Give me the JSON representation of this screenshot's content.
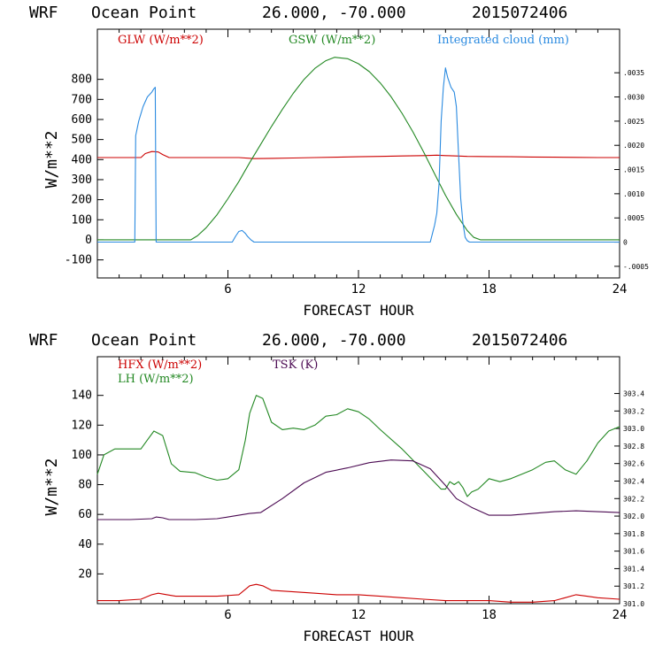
{
  "colors": {
    "red": "#cc0000",
    "green": "#228822",
    "blue": "#2a8ae0",
    "purple": "#4b0a52",
    "axis": "#000000"
  },
  "chart_data": [
    {
      "type": "line",
      "header": {
        "model": "WRF",
        "location": "Ocean Point",
        "coords": "26.000, -70.000",
        "init": "2015072406"
      },
      "xlabel": "FORECAST HOUR",
      "ylabel": "W/m**2",
      "xlim": [
        0,
        24
      ],
      "ylim": [
        -190,
        1050
      ],
      "x_ticks": [
        "6",
        "12",
        "18",
        "24"
      ],
      "y_ticks": [
        "-100",
        "0",
        "100",
        "200",
        "300",
        "400",
        "500",
        "600",
        "700",
        "800"
      ],
      "y2lim": [
        -0.00074,
        0.0044
      ],
      "y2_ticks": [
        "-.0005",
        "0",
        ".0005",
        ".0010",
        ".0015",
        ".0020",
        ".0025",
        ".0030",
        ".0035"
      ],
      "legend": [
        "GLW (W/m**2)",
        "GSW (W/m**2)",
        "Integrated cloud (mm)"
      ],
      "series": [
        {
          "name": "GLW (W/m**2)",
          "color": "red",
          "axis": "left",
          "x": [
            0,
            0.5,
            1.0,
            1.5,
            2.0,
            2.2,
            2.5,
            2.8,
            3.0,
            3.3,
            3.6,
            4.5,
            5.5,
            6.5,
            7.2,
            8.0,
            9.0,
            10.0,
            11.0,
            12.0,
            13.0,
            14.0,
            15.0,
            15.6,
            16.0,
            16.5,
            17.0,
            18.0,
            19.0,
            20.0,
            21.0,
            22.0,
            23.0,
            24.0
          ],
          "y": [
            410,
            410,
            410,
            410,
            410,
            430,
            440,
            438,
            425,
            410,
            410,
            410,
            410,
            410,
            405,
            406,
            408,
            410,
            412,
            414,
            416,
            418,
            420,
            422,
            420,
            418,
            416,
            415,
            414,
            413,
            412,
            411,
            410,
            410
          ]
        },
        {
          "name": "GSW (W/m**2)",
          "color": "green",
          "axis": "left",
          "x": [
            0,
            4.0,
            4.3,
            4.6,
            5.0,
            5.5,
            6.0,
            6.5,
            7.0,
            7.5,
            8.0,
            8.5,
            9.0,
            9.5,
            10.0,
            10.5,
            10.9,
            11.5,
            12.0,
            12.5,
            13.0,
            13.5,
            14.0,
            14.5,
            15.0,
            15.5,
            16.0,
            16.5,
            17.0,
            17.3,
            17.6,
            18.0,
            24.0
          ],
          "y": [
            0,
            0,
            0,
            20,
            60,
            125,
            205,
            290,
            385,
            475,
            565,
            650,
            730,
            800,
            855,
            893,
            910,
            903,
            878,
            838,
            782,
            713,
            631,
            538,
            436,
            329,
            222,
            127,
            46,
            12,
            0,
            0,
            0
          ]
        },
        {
          "name": "Integrated cloud (mm)",
          "color": "blue",
          "axis": "right",
          "x": [
            0,
            1.72,
            1.76,
            1.9,
            2.1,
            2.3,
            2.5,
            2.6,
            2.66,
            2.7,
            2.8,
            6.2,
            6.35,
            6.5,
            6.65,
            6.8,
            6.9,
            7.05,
            7.2,
            15.3,
            15.5,
            15.6,
            15.7,
            15.8,
            15.9,
            16.0,
            16.1,
            16.25,
            16.4,
            16.5,
            16.6,
            16.7,
            16.8,
            16.9,
            17.0,
            17.1,
            24.0
          ],
          "y": [
            0,
            0,
            0.0022,
            0.0025,
            0.0028,
            0.003,
            0.0031,
            0.00317,
            0.0032,
            0,
            0,
            0,
            0.00012,
            0.00022,
            0.00024,
            0.00018,
            0.00012,
            5e-05,
            0,
            0,
            0.00035,
            0.0006,
            0.0012,
            0.0025,
            0.0032,
            0.0036,
            0.0034,
            0.0032,
            0.0031,
            0.0028,
            0.0018,
            0.0009,
            0.0004,
            0.0001,
            3e-05,
            0,
            0
          ]
        }
      ]
    },
    {
      "type": "line",
      "header": {
        "model": "WRF",
        "location": "Ocean Point",
        "coords": "26.000, -70.000",
        "init": "2015072406"
      },
      "xlabel": "FORECAST HOUR",
      "ylabel": "W/m**2",
      "xlim": [
        0,
        24
      ],
      "ylim": [
        0,
        166
      ],
      "x_ticks": [
        "6",
        "12",
        "18",
        "24"
      ],
      "y_ticks": [
        "20",
        "40",
        "60",
        "80",
        "100",
        "120",
        "140"
      ],
      "y2lim": [
        301.0,
        303.82
      ],
      "y2_ticks": [
        "301.0",
        "301.2",
        "301.4",
        "301.6",
        "301.8",
        "302.0",
        "302.2",
        "302.4",
        "302.6",
        "302.8",
        "303.0",
        "303.2",
        "303.4"
      ],
      "legend": [
        "HFX (W/m**2)",
        "LH (W/m**2)",
        "TSK (K)"
      ],
      "series": [
        {
          "name": "HFX (W/m**2)",
          "color": "red",
          "axis": "left",
          "x": [
            0,
            1.0,
            2.0,
            2.5,
            2.8,
            3.2,
            3.6,
            4.5,
            5.5,
            6.5,
            7.0,
            7.3,
            7.6,
            8.0,
            9.0,
            10.0,
            11.0,
            12.0,
            13.0,
            14.0,
            15.0,
            16.0,
            17.0,
            18.0,
            19.0,
            20.0,
            21.0,
            21.5,
            22.0,
            22.5,
            23.0,
            24.0
          ],
          "y": [
            2,
            2,
            3,
            6,
            7,
            6,
            5,
            5,
            5,
            6,
            12,
            13,
            12,
            9,
            8,
            7,
            6,
            6,
            5,
            4,
            3,
            2,
            2,
            2,
            1,
            1,
            2,
            4,
            6,
            5,
            4,
            3
          ]
        },
        {
          "name": "LH (W/m**2)",
          "color": "green",
          "axis": "left",
          "x": [
            0,
            0.3,
            0.8,
            1.5,
            2.0,
            2.3,
            2.6,
            3.0,
            3.4,
            3.8,
            4.5,
            5.0,
            5.5,
            6.0,
            6.5,
            6.8,
            7.0,
            7.3,
            7.6,
            8.0,
            8.5,
            9.0,
            9.5,
            10.0,
            10.5,
            11.0,
            11.5,
            12.0,
            12.5,
            13.0,
            14.0,
            15.0,
            15.8,
            16.0,
            16.2,
            16.4,
            16.6,
            16.8,
            17.0,
            17.2,
            17.5,
            18.0,
            18.5,
            19.0,
            20.0,
            20.6,
            21.0,
            21.5,
            22.0,
            22.5,
            23.0,
            23.5,
            24.0
          ],
          "y": [
            87,
            100,
            104,
            104,
            104,
            110,
            116,
            113,
            94,
            89,
            88,
            85,
            83,
            84,
            90,
            110,
            128,
            140,
            138,
            122,
            117,
            118,
            117,
            120,
            126,
            127,
            131,
            129,
            124,
            117,
            104,
            89,
            77,
            77,
            82,
            80,
            82,
            78,
            72,
            75,
            77,
            84,
            82,
            84,
            90,
            95,
            96,
            90,
            87,
            96,
            108,
            116,
            119
          ]
        },
        {
          "name": "TSK (K)",
          "color": "purple",
          "axis": "right",
          "x": [
            0,
            1.5,
            2.5,
            2.7,
            3.0,
            3.3,
            4.5,
            5.5,
            6.0,
            7.0,
            7.5,
            8.5,
            9.5,
            10.5,
            11.5,
            12.5,
            13.5,
            14.5,
            15.3,
            16.0,
            16.5,
            17.2,
            18.0,
            19.0,
            20.0,
            21.0,
            22.0,
            23.0,
            24.0
          ],
          "y": [
            301.96,
            301.96,
            301.97,
            301.99,
            301.98,
            301.96,
            301.96,
            301.97,
            301.99,
            302.03,
            302.04,
            302.2,
            302.38,
            302.5,
            302.55,
            302.61,
            302.64,
            302.63,
            302.54,
            302.35,
            302.2,
            302.1,
            302.01,
            302.01,
            302.03,
            302.05,
            302.06,
            302.05,
            302.04
          ]
        }
      ]
    }
  ]
}
